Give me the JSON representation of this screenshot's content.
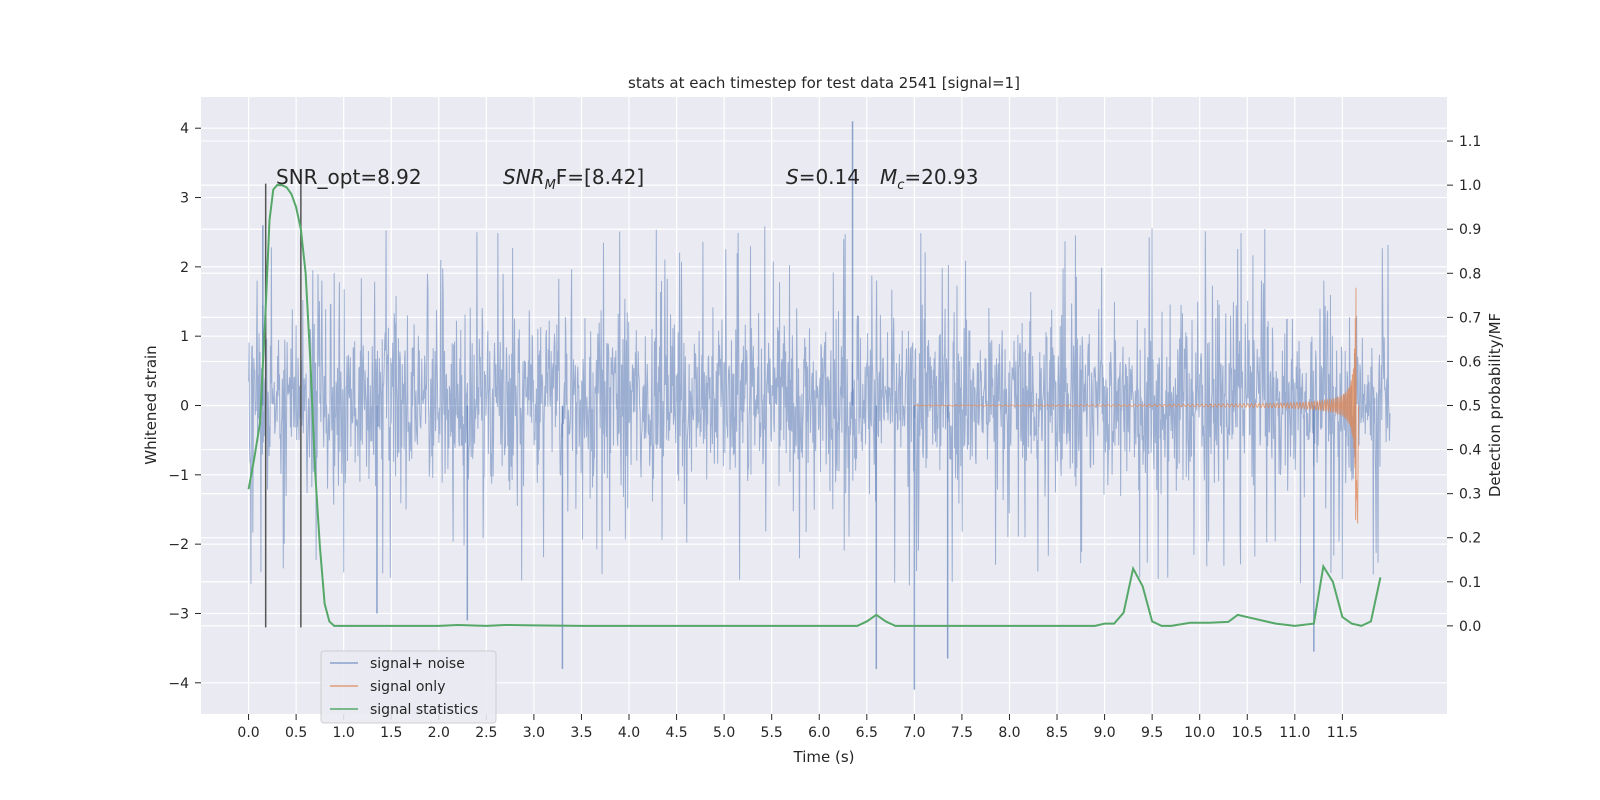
{
  "chart_data": {
    "type": "line",
    "title": "stats at each timestep for test data 2541 [signal=1]",
    "xlabel": "Time (s)",
    "ylabel": "Whitened strain",
    "ylabel_right": "Detection probability/MF",
    "xlim": [
      -0.5,
      12.6
    ],
    "ylim": [
      -4.45,
      4.45
    ],
    "ylim_right": [
      -0.2,
      1.2
    ],
    "x_ticks": [
      0.0,
      0.5,
      1.0,
      1.5,
      2.0,
      2.5,
      3.0,
      3.5,
      4.0,
      4.5,
      5.0,
      5.5,
      6.0,
      6.5,
      7.0,
      7.5,
      8.0,
      8.5,
      9.0,
      9.5,
      10.0,
      10.5,
      11.0,
      11.5
    ],
    "x_tick_labels": [
      "0.0",
      "0.5",
      "1.0",
      "1.5",
      "2.0",
      "2.5",
      "3.0",
      "3.5",
      "4.0",
      "4.5",
      "5.0",
      "5.5",
      "6.0",
      "6.5",
      "7.0",
      "7.5",
      "8.0",
      "8.5",
      "9.0",
      "9.5",
      "10.0",
      "10.5",
      "11.0",
      "11.5"
    ],
    "y_ticks": [
      -4,
      -3,
      -2,
      -1,
      0,
      1,
      2,
      3,
      4
    ],
    "y_tick_labels": [
      "−4",
      "−3",
      "−2",
      "−1",
      "0",
      "1",
      "2",
      "3",
      "4"
    ],
    "y_right_ticks": [
      0.0,
      0.1,
      0.2,
      0.3,
      0.4,
      0.5,
      0.6,
      0.7,
      0.8,
      0.9,
      1.0,
      1.1
    ],
    "y_right_tick_labels": [
      "0.0",
      "0.1",
      "0.2",
      "0.3",
      "0.4",
      "0.5",
      "0.6",
      "0.7",
      "0.8",
      "0.9",
      "1.0",
      "1.1"
    ],
    "grid": true,
    "legend_position": "lower-left",
    "series": [
      {
        "name": "signal+ noise",
        "color": "#4c72b0",
        "axis": "left",
        "kind": "noise",
        "x_range": [
          0.0,
          12.0
        ],
        "typical_envelope": [
          -1.6,
          1.9
        ],
        "notable_peaks": [
          [
            0.15,
            2.6
          ],
          [
            3.3,
            -3.8
          ],
          [
            6.35,
            4.1
          ],
          [
            6.6,
            -3.8
          ],
          [
            7.0,
            -4.1
          ],
          [
            7.35,
            -3.65
          ],
          [
            11.2,
            -3.55
          ],
          [
            2.3,
            -3.1
          ],
          [
            1.35,
            -3.0
          ]
        ]
      },
      {
        "name": "signal only",
        "color": "#dd8452",
        "axis": "left",
        "kind": "chirp",
        "x_range": [
          7.0,
          11.7
        ],
        "merger_time": 11.65,
        "peak_amplitude": 1.85
      },
      {
        "name": "signal statistics",
        "color": "#55a868",
        "axis": "right",
        "kind": "line",
        "x": [
          0.0,
          0.06,
          0.12,
          0.18,
          0.22,
          0.26,
          0.3,
          0.35,
          0.4,
          0.45,
          0.5,
          0.55,
          0.6,
          0.65,
          0.7,
          0.75,
          0.8,
          0.85,
          0.9,
          1.0,
          2.0,
          2.2,
          2.5,
          2.7,
          3.0,
          3.5,
          4.0,
          5.0,
          6.0,
          6.4,
          6.5,
          6.6,
          6.7,
          6.8,
          7.0,
          8.0,
          8.5,
          8.9,
          9.0,
          9.1,
          9.2,
          9.3,
          9.4,
          9.5,
          9.6,
          9.7,
          9.9,
          10.1,
          10.3,
          10.4,
          10.5,
          10.8,
          11.0,
          11.2,
          11.3,
          11.4,
          11.5,
          11.6,
          11.7,
          11.8,
          11.9
        ],
        "values": [
          0.31,
          0.38,
          0.46,
          0.72,
          0.92,
          0.99,
          1.0,
          1.0,
          0.995,
          0.98,
          0.95,
          0.9,
          0.8,
          0.6,
          0.35,
          0.18,
          0.05,
          0.01,
          0.0,
          0.0,
          0.0,
          0.002,
          0.0,
          0.002,
          0.001,
          0.0,
          0.0,
          0.0,
          0.0,
          0.0,
          0.01,
          0.025,
          0.01,
          0.0,
          0.0,
          0.0,
          0.0,
          0.0,
          0.005,
          0.005,
          0.03,
          0.13,
          0.09,
          0.01,
          0.0,
          0.0,
          0.007,
          0.007,
          0.009,
          0.025,
          0.02,
          0.005,
          0.0,
          0.005,
          0.135,
          0.1,
          0.02,
          0.005,
          0.0,
          0.01,
          0.11
        ]
      }
    ],
    "vertical_lines": [
      0.18,
      0.55
    ],
    "vertical_lines_range": [
      -3.2,
      3.2
    ],
    "annotations": [
      {
        "text": "SNR_opt=8.92",
        "x": 0.2,
        "y": 3.3
      },
      {
        "text": "SNRMF=[8.42]",
        "x": 2.6,
        "y": 3.3
      },
      {
        "text": "S=0.14",
        "x": 5.6,
        "y": 3.3
      },
      {
        "text": "Mc=20.93",
        "x": 6.6,
        "y": 3.3
      }
    ]
  },
  "annotations_text": {
    "snr_opt": "SNR_opt=8.92",
    "snr_mf_base": "SNR",
    "snr_mf_sub": "M",
    "snr_mf_rest": "F=[8.42]",
    "s_italic": "S",
    "s_rest": "=0.14",
    "mc_italic": "M",
    "mc_sub": "c",
    "mc_rest": "=20.93"
  },
  "colors": {
    "axes_bg": "#eaeaf2",
    "grid": "#ffffff",
    "noise": "#4c72b0",
    "signal": "#dd8452",
    "stats": "#55a868",
    "vlines": "#555555"
  }
}
